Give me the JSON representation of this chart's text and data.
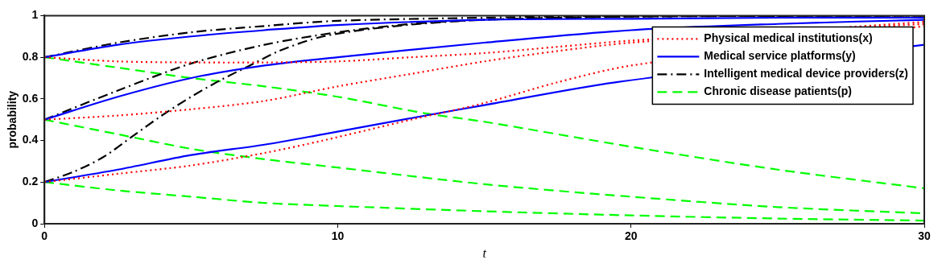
{
  "chart_data": {
    "type": "line",
    "xlabel": "t",
    "ylabel": "probability",
    "xlim": [
      0,
      30
    ],
    "xticks": [
      0,
      10,
      20,
      30
    ],
    "ylim": [
      0,
      1
    ],
    "yticks": [
      0,
      0.2,
      0.4,
      0.6,
      0.8,
      1
    ],
    "grid": false,
    "legend": "top right",
    "series": [
      {
        "name": "Physical medical institutions(x)",
        "color": "#ff0000",
        "line_style": "dotted",
        "x": [
          0,
          2.5,
          5,
          7.5,
          10,
          12.5,
          15,
          17.5,
          20,
          30
        ],
        "values": [
          0.8,
          0.78,
          0.775,
          0.775,
          0.78,
          0.8,
          0.82,
          0.85,
          0.88,
          0.96
        ]
      },
      {
        "color": "#ff0000",
        "line_style": "dotted",
        "x": [
          0,
          2.5,
          5,
          7.5,
          10,
          12.5,
          15,
          17.5,
          20,
          30
        ],
        "values": [
          0.5,
          0.52,
          0.55,
          0.59,
          0.66,
          0.72,
          0.78,
          0.83,
          0.87,
          0.97
        ]
      },
      {
        "color": "#ff0000",
        "line_style": "dotted",
        "x": [
          0,
          2.5,
          5,
          7.5,
          9.5,
          12.5,
          15,
          17.5,
          20,
          30
        ],
        "values": [
          0.2,
          0.24,
          0.28,
          0.34,
          0.4,
          0.5,
          0.58,
          0.68,
          0.76,
          0.95
        ]
      },
      {
        "name": "Medical service platforms(y)",
        "color": "#0000ff",
        "line_style": "solid",
        "x": [
          0,
          2.5,
          5,
          7.5,
          10,
          15,
          20,
          25,
          30
        ],
        "values": [
          0.8,
          0.86,
          0.9,
          0.93,
          0.955,
          0.98,
          0.985,
          0.99,
          0.99
        ]
      },
      {
        "color": "#0000ff",
        "line_style": "solid",
        "x": [
          0,
          2.5,
          5,
          7.5,
          10,
          15,
          20,
          25,
          30
        ],
        "values": [
          0.5,
          0.61,
          0.7,
          0.76,
          0.8,
          0.87,
          0.93,
          0.96,
          0.98
        ]
      },
      {
        "color": "#0000ff",
        "line_style": "solid",
        "x": [
          0,
          2.5,
          5,
          7.5,
          9.5,
          13,
          15,
          19.5,
          30
        ],
        "values": [
          0.2,
          0.26,
          0.33,
          0.38,
          0.43,
          0.52,
          0.57,
          0.68,
          0.86
        ]
      },
      {
        "name": "Intelligent medical device providers(z)",
        "color": "#000000",
        "line_style": "dashdot",
        "x": [
          0,
          2.5,
          5,
          7.5,
          10,
          15,
          20,
          30
        ],
        "values": [
          0.8,
          0.87,
          0.92,
          0.95,
          0.975,
          0.99,
          1,
          1
        ]
      },
      {
        "color": "#000000",
        "line_style": "dashdot",
        "x": [
          0,
          2.5,
          5,
          7.5,
          10,
          12.5,
          15,
          20,
          30
        ],
        "values": [
          0.5,
          0.64,
          0.77,
          0.86,
          0.92,
          0.96,
          0.98,
          0.995,
          1
        ]
      },
      {
        "color": "#000000",
        "line_style": "dashdot",
        "x": [
          0,
          1,
          2,
          3,
          4,
          5,
          6,
          7,
          8,
          9.5,
          12,
          15,
          20,
          30
        ],
        "values": [
          0.2,
          0.25,
          0.32,
          0.42,
          0.52,
          0.61,
          0.69,
          0.76,
          0.83,
          0.9,
          0.95,
          0.98,
          0.995,
          1
        ]
      },
      {
        "name": "Chronic disease patients(p)",
        "color": "#00ff00",
        "line_style": "dashed",
        "x": [
          0,
          2.5,
          5,
          7.5,
          10,
          13,
          15,
          20,
          25,
          30
        ],
        "values": [
          0.8,
          0.75,
          0.7,
          0.66,
          0.61,
          0.53,
          0.49,
          0.37,
          0.26,
          0.17
        ]
      },
      {
        "color": "#00ff00",
        "line_style": "dashed",
        "x": [
          0,
          2.5,
          5,
          7.5,
          10,
          15,
          20,
          25,
          30
        ],
        "values": [
          0.5,
          0.43,
          0.36,
          0.31,
          0.27,
          0.19,
          0.13,
          0.08,
          0.05
        ]
      },
      {
        "color": "#00ff00",
        "line_style": "dashed",
        "x": [
          0,
          2.5,
          5,
          7.5,
          10,
          15,
          20,
          25,
          30
        ],
        "values": [
          0.2,
          0.16,
          0.13,
          0.1,
          0.085,
          0.06,
          0.04,
          0.025,
          0.015
        ]
      }
    ]
  }
}
